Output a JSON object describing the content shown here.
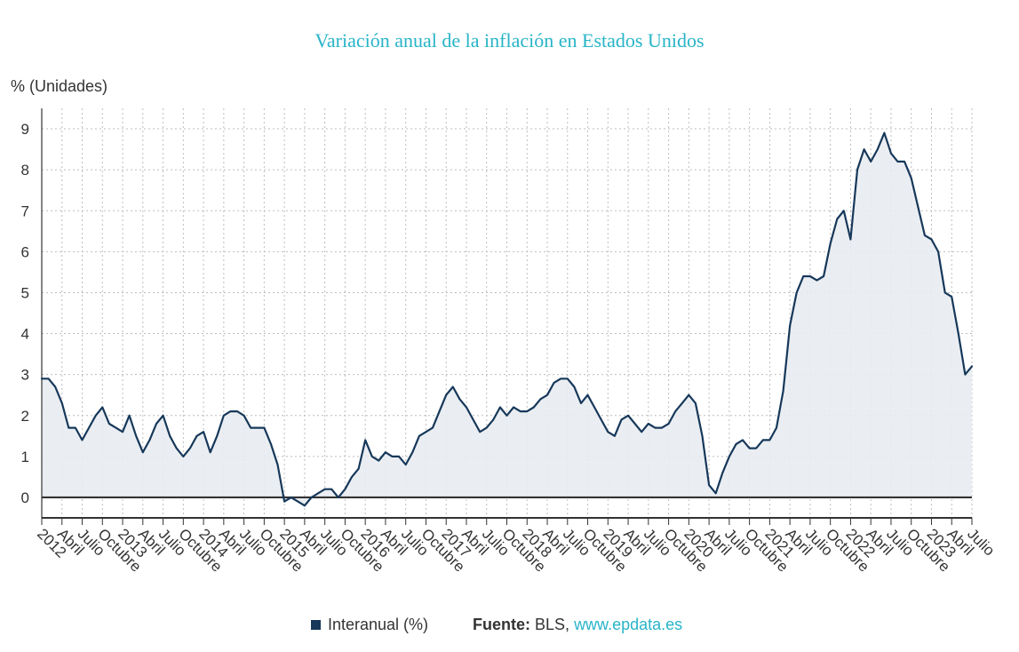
{
  "colors": {
    "title": "#28b4c8",
    "series_line": "#17385a",
    "series_area": "#e8ecf1",
    "axis_line": "#333333",
    "grid_line": "#bdbdbd",
    "text": "#333333",
    "source_link": "#28b4c8"
  },
  "source": {
    "prefix": "Fuente:",
    "name": "BLS,",
    "link": "www.epdata.es"
  },
  "chart_data": {
    "type": "line",
    "title": "Variación anual de la inflación en Estados Unidos",
    "ylabel": "% (Unidades)",
    "ylim": [
      -0.5,
      9.5
    ],
    "y_ticks": [
      0,
      1,
      2,
      3,
      4,
      5,
      6,
      7,
      8,
      9
    ],
    "x_tick_labels": [
      "2012",
      "Abril",
      "Julio",
      "Octubre",
      "2013",
      "Abril",
      "Julio",
      "Octubre",
      "2014",
      "Abril",
      "Julio",
      "Octubre",
      "2015",
      "Abril",
      "Julio",
      "Octubre",
      "2016",
      "Abril",
      "Julio",
      "Octubre",
      "2017",
      "Abril",
      "Julio",
      "Octubre",
      "2018",
      "Abril",
      "Julio",
      "Octubre",
      "2019",
      "Abril",
      "Julio",
      "Octubre",
      "2020",
      "Abril",
      "Julio",
      "Octubre",
      "2021",
      "Abril",
      "Julio",
      "Octubre",
      "2022",
      "Abril",
      "Julio",
      "Octubre",
      "2023",
      "Abril",
      "Julio"
    ],
    "grid": true,
    "area_fill": true,
    "legend_position": "bottom",
    "x": [
      "2012-01",
      "2012-02",
      "2012-03",
      "2012-04",
      "2012-05",
      "2012-06",
      "2012-07",
      "2012-08",
      "2012-09",
      "2012-10",
      "2012-11",
      "2012-12",
      "2013-01",
      "2013-02",
      "2013-03",
      "2013-04",
      "2013-05",
      "2013-06",
      "2013-07",
      "2013-08",
      "2013-09",
      "2013-10",
      "2013-11",
      "2013-12",
      "2014-01",
      "2014-02",
      "2014-03",
      "2014-04",
      "2014-05",
      "2014-06",
      "2014-07",
      "2014-08",
      "2014-09",
      "2014-10",
      "2014-11",
      "2014-12",
      "2015-01",
      "2015-02",
      "2015-03",
      "2015-04",
      "2015-05",
      "2015-06",
      "2015-07",
      "2015-08",
      "2015-09",
      "2015-10",
      "2015-11",
      "2015-12",
      "2016-01",
      "2016-02",
      "2016-03",
      "2016-04",
      "2016-05",
      "2016-06",
      "2016-07",
      "2016-08",
      "2016-09",
      "2016-10",
      "2016-11",
      "2016-12",
      "2017-01",
      "2017-02",
      "2017-03",
      "2017-04",
      "2017-05",
      "2017-06",
      "2017-07",
      "2017-08",
      "2017-09",
      "2017-10",
      "2017-11",
      "2017-12",
      "2018-01",
      "2018-02",
      "2018-03",
      "2018-04",
      "2018-05",
      "2018-06",
      "2018-07",
      "2018-08",
      "2018-09",
      "2018-10",
      "2018-11",
      "2018-12",
      "2019-01",
      "2019-02",
      "2019-03",
      "2019-04",
      "2019-05",
      "2019-06",
      "2019-07",
      "2019-08",
      "2019-09",
      "2019-10",
      "2019-11",
      "2019-12",
      "2020-01",
      "2020-02",
      "2020-03",
      "2020-04",
      "2020-05",
      "2020-06",
      "2020-07",
      "2020-08",
      "2020-09",
      "2020-10",
      "2020-11",
      "2020-12",
      "2021-01",
      "2021-02",
      "2021-03",
      "2021-04",
      "2021-05",
      "2021-06",
      "2021-07",
      "2021-08",
      "2021-09",
      "2021-10",
      "2021-11",
      "2021-12",
      "2022-01",
      "2022-02",
      "2022-03",
      "2022-04",
      "2022-05",
      "2022-06",
      "2022-07",
      "2022-08",
      "2022-09",
      "2022-10",
      "2022-11",
      "2022-12",
      "2023-01",
      "2023-02",
      "2023-03",
      "2023-04",
      "2023-05",
      "2023-06",
      "2023-07"
    ],
    "series": [
      {
        "name": "Interanual (%)",
        "values": [
          2.9,
          2.9,
          2.7,
          2.3,
          1.7,
          1.7,
          1.4,
          1.7,
          2.0,
          2.2,
          1.8,
          1.7,
          1.6,
          2.0,
          1.5,
          1.1,
          1.4,
          1.8,
          2.0,
          1.5,
          1.2,
          1.0,
          1.2,
          1.5,
          1.6,
          1.1,
          1.5,
          2.0,
          2.1,
          2.1,
          2.0,
          1.7,
          1.7,
          1.7,
          1.3,
          0.8,
          -0.1,
          0.0,
          -0.1,
          -0.2,
          0.0,
          0.1,
          0.2,
          0.2,
          0.0,
          0.2,
          0.5,
          0.7,
          1.4,
          1.0,
          0.9,
          1.1,
          1.0,
          1.0,
          0.8,
          1.1,
          1.5,
          1.6,
          1.7,
          2.1,
          2.5,
          2.7,
          2.4,
          2.2,
          1.9,
          1.6,
          1.7,
          1.9,
          2.2,
          2.0,
          2.2,
          2.1,
          2.1,
          2.2,
          2.4,
          2.5,
          2.8,
          2.9,
          2.9,
          2.7,
          2.3,
          2.5,
          2.2,
          1.9,
          1.6,
          1.5,
          1.9,
          2.0,
          1.8,
          1.6,
          1.8,
          1.7,
          1.7,
          1.8,
          2.1,
          2.3,
          2.5,
          2.3,
          1.5,
          0.3,
          0.1,
          0.6,
          1.0,
          1.3,
          1.4,
          1.2,
          1.2,
          1.4,
          1.4,
          1.7,
          2.6,
          4.2,
          5.0,
          5.4,
          5.4,
          5.3,
          5.4,
          6.2,
          6.8,
          7.0,
          6.3,
          8.0,
          8.5,
          8.2,
          8.5,
          8.9,
          8.4,
          8.2,
          8.2,
          7.8,
          7.1,
          6.4,
          6.3,
          6.0,
          5.0,
          4.9,
          4.0,
          3.0,
          3.2
        ]
      }
    ]
  }
}
